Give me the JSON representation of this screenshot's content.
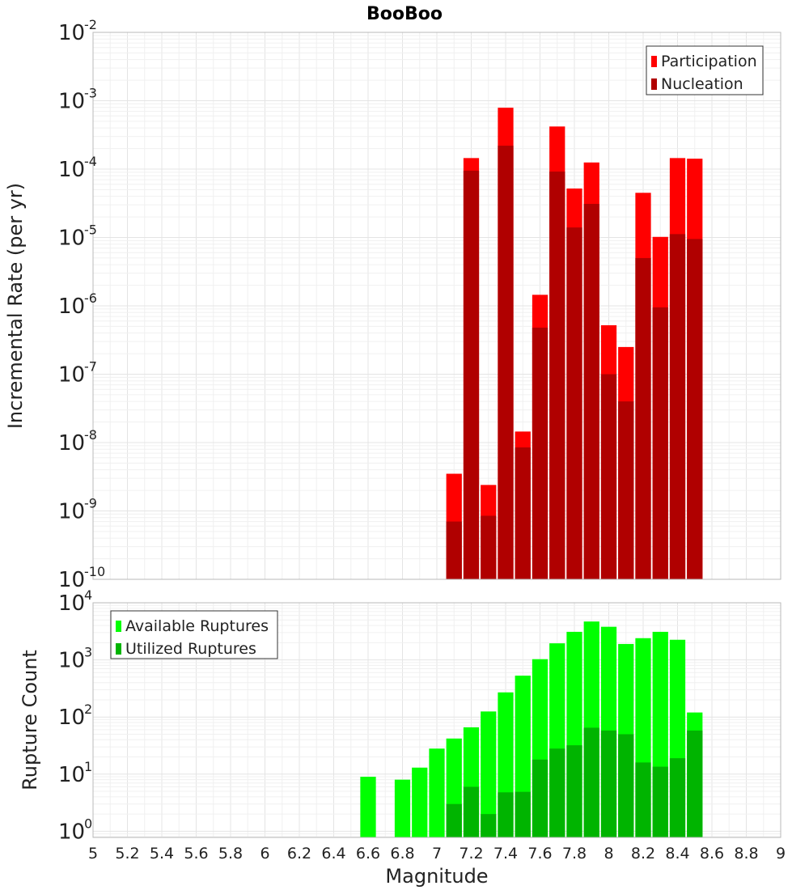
{
  "chart_data": [
    {
      "type": "bar",
      "title": "BooBoo",
      "xlabel": "",
      "ylabel": "Incremental Rate (per yr)",
      "yscale": "log",
      "ylim": [
        1e-10,
        0.01
      ],
      "xlim": [
        5,
        9
      ],
      "grid": true,
      "legend_position": "top-right",
      "x": [
        7.1,
        7.2,
        7.3,
        7.4,
        7.5,
        7.6,
        7.7,
        7.8,
        7.9,
        8.0,
        8.1,
        8.2,
        8.3,
        8.4,
        8.5
      ],
      "series": [
        {
          "name": "Participation",
          "color": "#ff0000",
          "values": [
            3.5e-09,
            0.000145,
            2.4e-09,
            0.00079,
            1.45e-08,
            1.45e-06,
            0.00042,
            5.2e-05,
            0.000125,
            5.2e-07,
            2.5e-07,
            4.5e-05,
            1.02e-05,
            0.000145,
            0.000142
          ]
        },
        {
          "name": "Nucleation",
          "color": "#b00000",
          "values": [
            7e-10,
            9.5e-05,
            8.5e-10,
            0.00022,
            8.5e-09,
            4.8e-07,
            9.2e-05,
            1.4e-05,
            3.1e-05,
            1e-07,
            4e-08,
            5e-06,
            9.5e-07,
            1.12e-05,
            9.5e-06
          ]
        }
      ],
      "ytick_exponents": [
        -10,
        -9,
        -8,
        -7,
        -6,
        -5,
        -4,
        -3,
        -2
      ]
    },
    {
      "type": "bar",
      "title": "",
      "xlabel": "Magnitude",
      "ylabel": "Rupture Count",
      "yscale": "log",
      "ylim": [
        0.78,
        10000
      ],
      "xlim": [
        5,
        9
      ],
      "grid": true,
      "legend_position": "top-left",
      "x": [
        6.6,
        6.7,
        6.8,
        6.9,
        7.0,
        7.1,
        7.2,
        7.3,
        7.4,
        7.5,
        7.6,
        7.7,
        7.8,
        7.9,
        8.0,
        8.1,
        8.2,
        8.3,
        8.4,
        8.5
      ],
      "series": [
        {
          "name": "Available Ruptures",
          "color": "#00ff00",
          "values": [
            9,
            0,
            8,
            13,
            28,
            42,
            66,
            125,
            270,
            530,
            1030,
            1950,
            3100,
            4700,
            3800,
            1900,
            2400,
            3100,
            2250,
            120
          ]
        },
        {
          "name": "Utilized Ruptures",
          "color": "#00b400",
          "values": [
            0,
            0,
            0,
            0,
            0,
            3,
            6,
            2,
            4.8,
            4.9,
            18,
            28,
            32,
            65,
            58,
            50,
            16,
            13.5,
            19,
            58
          ]
        }
      ],
      "ytick_exponents": [
        0,
        1,
        2,
        3,
        4
      ],
      "xticks": [
        "5",
        "5.2",
        "5.4",
        "5.6",
        "5.8",
        "6",
        "6.2",
        "6.4",
        "6.6",
        "6.8",
        "7",
        "7.2",
        "7.4",
        "7.6",
        "7.8",
        "8",
        "8.2",
        "8.4",
        "8.6",
        "8.8",
        "9"
      ]
    }
  ]
}
